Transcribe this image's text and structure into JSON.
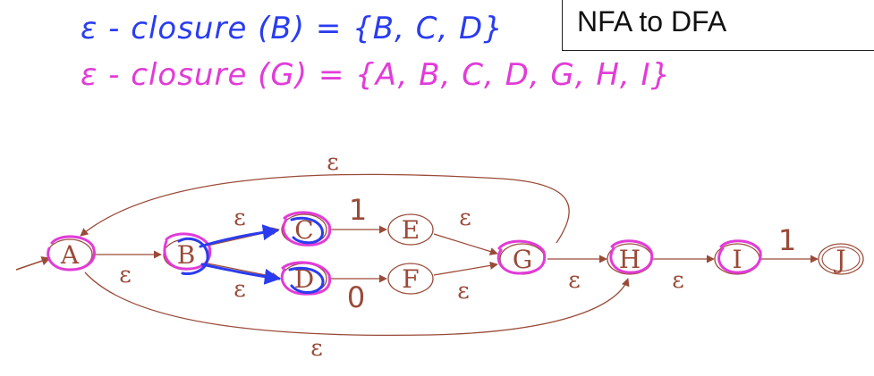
{
  "title": "NFA to DFA",
  "notes": {
    "line1": "ε - closure (B) = {B, C, D}",
    "line2": "ε - closure (G) = {A, B, C, D, G, H, I}"
  },
  "states": {
    "A": "A",
    "B": "B",
    "C": "C",
    "D": "D",
    "E": "E",
    "F": "F",
    "G": "G",
    "H": "H",
    "I": "I",
    "J": "J"
  },
  "edges": {
    "A_B": "ε",
    "B_C": "ε",
    "B_D": "ε",
    "C_E": "1",
    "D_F": "0",
    "E_G": "ε",
    "F_G": "ε",
    "G_H": "ε",
    "H_I": "ε",
    "I_J": "1",
    "G_A_loop": "ε",
    "A_H_bottom": "ε"
  },
  "colors": {
    "nfa": "#9a4a38",
    "highlight": "#e23bd8",
    "annotation_blue": "#2a3cf0"
  }
}
